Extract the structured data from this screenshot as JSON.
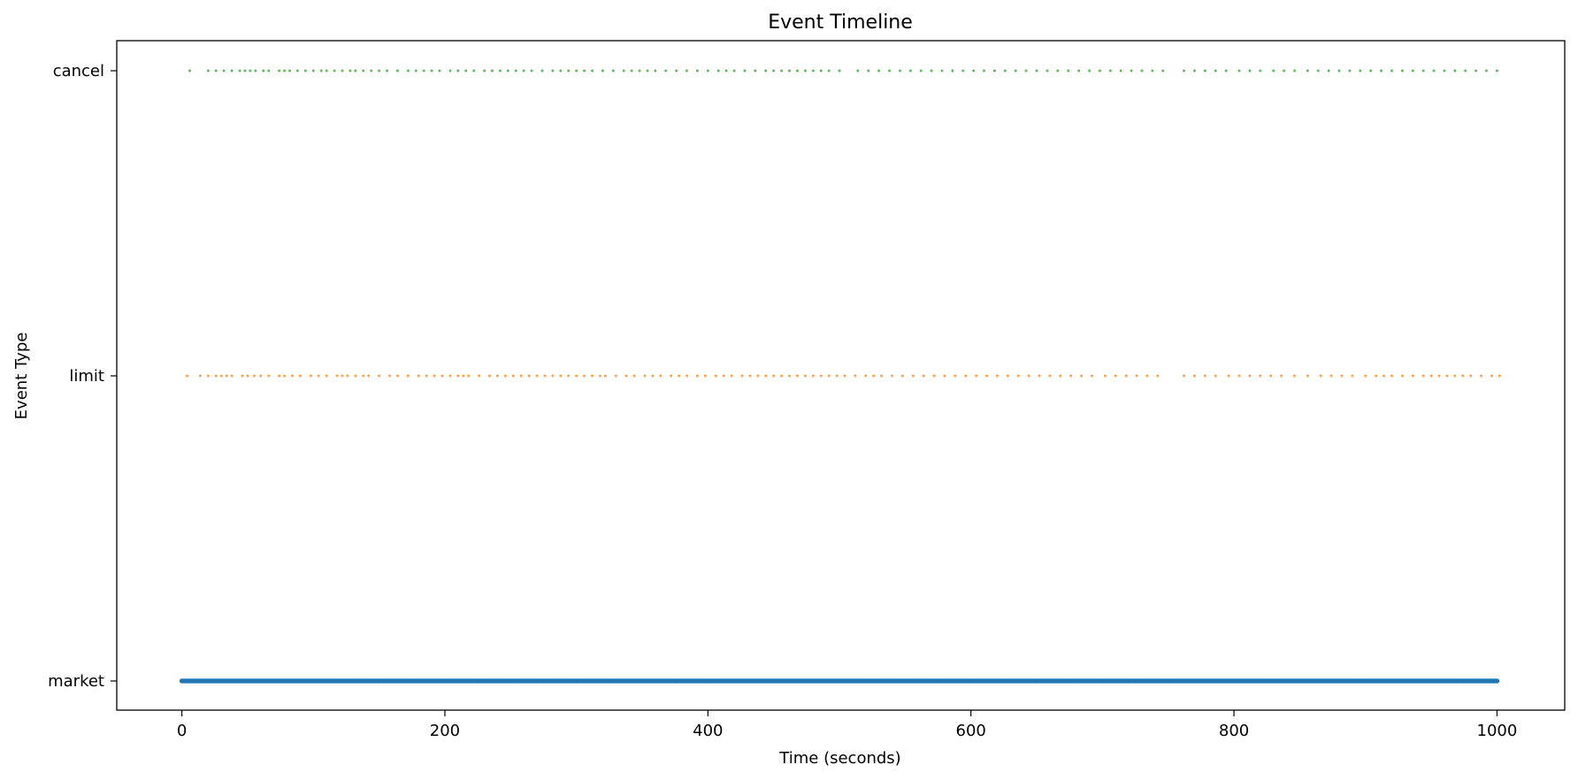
{
  "chart_data": {
    "type": "scatter",
    "title": "Event Timeline",
    "xlabel": "Time (seconds)",
    "ylabel": "Event Type",
    "xlim": [
      -49.5,
      1051.5
    ],
    "x_ticks": [
      "0",
      "200",
      "400",
      "600",
      "800",
      "1000"
    ],
    "x_tick_values": [
      0,
      200,
      400,
      600,
      800,
      1000
    ],
    "categories": [
      "market",
      "limit",
      "cancel"
    ],
    "grid": false,
    "legend": "none",
    "series": [
      {
        "category": "market",
        "color": "#1f77b4",
        "marker_radius": 2.6,
        "opacity": 1.0,
        "x": [
          0,
          25,
          50,
          75,
          100,
          125,
          150,
          175,
          200,
          225,
          250,
          275,
          300,
          325,
          350,
          375,
          400,
          425,
          450,
          475,
          500,
          525,
          550,
          575,
          600,
          625,
          650,
          675,
          700,
          725,
          750,
          775,
          800,
          825,
          850,
          875,
          900,
          925,
          950,
          975,
          1000
        ]
      },
      {
        "category": "limit",
        "color": "#ff7f0e",
        "marker_radius": 1.5,
        "opacity": 0.75,
        "x": [
          4,
          14,
          20,
          26,
          30,
          34,
          38,
          46,
          50,
          55,
          60,
          66,
          74,
          78,
          84,
          90,
          98,
          104,
          110,
          118,
          122,
          126,
          132,
          138,
          142,
          150,
          158,
          164,
          172,
          180,
          186,
          192,
          198,
          204,
          210,
          214,
          218,
          226,
          234,
          240,
          246,
          252,
          258,
          264,
          270,
          276,
          282,
          288,
          294,
          300,
          306,
          312,
          318,
          322,
          330,
          338,
          344,
          352,
          358,
          364,
          372,
          378,
          384,
          392,
          398,
          406,
          412,
          418,
          426,
          432,
          438,
          444,
          450,
          456,
          462,
          468,
          474,
          480,
          486,
          492,
          498,
          504,
          512,
          520,
          526,
          532,
          540,
          548,
          556,
          564,
          572,
          580,
          588,
          596,
          604,
          612,
          620,
          628,
          636,
          644,
          652,
          660,
          668,
          676,
          684,
          692,
          702,
          710,
          718,
          726,
          734,
          742,
          762,
          770,
          778,
          786,
          796,
          804,
          812,
          820,
          828,
          836,
          846,
          856,
          866,
          874,
          882,
          890,
          900,
          908,
          914,
          920,
          928,
          936,
          944,
          950,
          956,
          962,
          968,
          974,
          980,
          988,
          996,
          1002
        ]
      },
      {
        "category": "cancel",
        "color": "#2ca02c",
        "marker_radius": 1.5,
        "opacity": 0.75,
        "x": [
          6,
          20,
          26,
          32,
          38,
          44,
          48,
          52,
          56,
          62,
          66,
          74,
          78,
          82,
          88,
          94,
          100,
          106,
          110,
          116,
          122,
          128,
          132,
          138,
          144,
          150,
          156,
          164,
          172,
          178,
          184,
          190,
          196,
          204,
          210,
          216,
          222,
          230,
          236,
          242,
          248,
          254,
          260,
          266,
          274,
          282,
          288,
          294,
          300,
          306,
          312,
          320,
          328,
          336,
          342,
          348,
          354,
          360,
          368,
          376,
          384,
          392,
          400,
          408,
          414,
          420,
          428,
          436,
          444,
          450,
          456,
          462,
          468,
          474,
          480,
          486,
          492,
          500,
          514,
          522,
          530,
          538,
          546,
          554,
          562,
          570,
          578,
          586,
          594,
          602,
          610,
          618,
          626,
          634,
          642,
          650,
          658,
          666,
          674,
          682,
          690,
          698,
          706,
          714,
          722,
          730,
          738,
          746,
          762,
          770,
          778,
          786,
          794,
          804,
          812,
          820,
          830,
          838,
          846,
          856,
          864,
          872,
          880,
          888,
          896,
          904,
          912,
          920,
          928,
          936,
          944,
          952,
          960,
          968,
          976,
          984,
          992,
          1000
        ]
      }
    ]
  }
}
